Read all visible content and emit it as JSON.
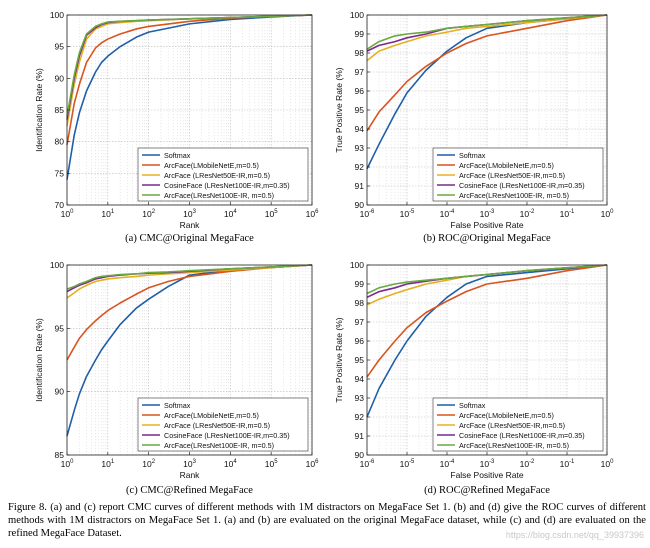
{
  "figure": {
    "caption": "Figure 8. (a) and (c) report CMC curves of different methods with 1M distractors on MegaFace Set 1. (b) and (d) give the ROC curves of different methods with 1M distractors on MegaFace Set 1. (a) and (b) are evaluated on the original MegaFace dataset, while (c) and (d) are evaluated on the refined MegaFace Dataset.",
    "watermark": "https://blog.csdn.net/qq_39937396",
    "colors": {
      "softmax": "#1f5fa8",
      "arcface_mobile": "#d9541e",
      "arcface_r50": "#e5b020",
      "cosineface": "#7a2a8e",
      "arcface_r100": "#6aa842"
    }
  },
  "chart_data": [
    {
      "type": "line",
      "caption": "(a) CMC@Original MegaFace",
      "xlabel": "Rank",
      "ylabel": "Identification Rate (%)",
      "xscale": "log",
      "xlim": [
        1,
        1000000
      ],
      "ylim": [
        70,
        100
      ],
      "xticks": [
        1,
        10,
        100,
        1000,
        10000,
        100000,
        1000000
      ],
      "xtick_labels": [
        [
          "10",
          "0"
        ],
        [
          "10",
          "1"
        ],
        [
          "10",
          "2"
        ],
        [
          "10",
          "3"
        ],
        [
          "10",
          "4"
        ],
        [
          "10",
          "5"
        ],
        [
          "10",
          "6"
        ]
      ],
      "yticks": [
        70,
        75,
        80,
        85,
        90,
        95,
        100
      ],
      "ytick_labels": [
        "70",
        "75",
        "80",
        "85",
        "90",
        "95",
        "100"
      ],
      "grid": true,
      "legend_position": "bottom-right",
      "series": [
        {
          "name": "Softmax",
          "color": "#1f5fa8",
          "x": [
            1,
            1.5,
            2,
            3,
            5,
            7,
            10,
            20,
            50,
            100,
            1000,
            10000,
            100000,
            1000000
          ],
          "y": [
            74,
            81,
            84.5,
            88,
            91,
            92.5,
            93.5,
            95,
            96.5,
            97.3,
            98.6,
            99.3,
            99.7,
            100
          ]
        },
        {
          "name": "ArcFace(LMobileNetE,m=0.5)",
          "color": "#d9541e",
          "x": [
            1,
            1.5,
            2,
            3,
            5,
            7,
            10,
            20,
            50,
            100,
            1000,
            10000,
            100000,
            1000000
          ],
          "y": [
            79.5,
            86,
            89,
            92.5,
            94.8,
            95.6,
            96.2,
            97,
            97.8,
            98.2,
            99,
            99.5,
            99.8,
            100
          ]
        },
        {
          "name": "ArcFace (LResNet50E-IR,m=0.5)",
          "color": "#e5b020",
          "x": [
            1,
            1.5,
            2,
            3,
            5,
            7,
            10,
            20,
            50,
            100,
            1000,
            10000,
            100000,
            1000000
          ],
          "y": [
            82.5,
            89,
            92.5,
            96.2,
            97.8,
            98.2,
            98.6,
            98.8,
            99,
            99.1,
            99.4,
            99.6,
            99.8,
            100
          ]
        },
        {
          "name": "CosineFace (LResNet100E-IR,m=0.35)",
          "color": "#7a2a8e",
          "x": [
            1,
            1.5,
            2,
            3,
            5,
            7,
            10,
            20,
            50,
            100,
            1000,
            10000,
            100000,
            1000000
          ],
          "y": [
            83.5,
            90,
            93.5,
            96.8,
            98,
            98.5,
            98.8,
            99,
            99.1,
            99.2,
            99.4,
            99.6,
            99.8,
            100
          ]
        },
        {
          "name": "ArcFace(LResNet100E-IR, m=0.5)",
          "color": "#6aa842",
          "x": [
            1,
            1.5,
            2,
            3,
            5,
            7,
            10,
            20,
            50,
            100,
            1000,
            10000,
            100000,
            1000000
          ],
          "y": [
            84,
            90.5,
            94,
            97,
            98.2,
            98.6,
            98.9,
            99,
            99.1,
            99.2,
            99.4,
            99.6,
            99.8,
            100
          ]
        }
      ]
    },
    {
      "type": "line",
      "caption": "(b) ROC@Original MegaFace",
      "xlabel": "False Positive Rate",
      "ylabel": "True Positive Rate (%)",
      "xscale": "log",
      "xlim": [
        1e-06,
        1
      ],
      "ylim": [
        90,
        100
      ],
      "xticks": [
        1e-06,
        1e-05,
        0.0001,
        0.001,
        0.01,
        0.1,
        1
      ],
      "xtick_labels": [
        [
          "10",
          "-6"
        ],
        [
          "10",
          "-5"
        ],
        [
          "10",
          "-4"
        ],
        [
          "10",
          "-3"
        ],
        [
          "10",
          "-2"
        ],
        [
          "10",
          "-1"
        ],
        [
          "10",
          "0"
        ]
      ],
      "yticks": [
        90,
        91,
        92,
        93,
        94,
        95,
        96,
        97,
        98,
        99,
        100
      ],
      "ytick_labels": [
        "90",
        "91",
        "92",
        "93",
        "94",
        "95",
        "96",
        "97",
        "98",
        "99",
        "100"
      ],
      "grid": true,
      "legend_position": "bottom-right",
      "series": [
        {
          "name": "Softmax",
          "color": "#1f5fa8",
          "x": [
            1e-06,
            2e-06,
            5e-06,
            1e-05,
            3e-05,
            0.0001,
            0.0003,
            0.001,
            0.01,
            0.1,
            1
          ],
          "y": [
            91.9,
            93.2,
            94.8,
            95.9,
            97.1,
            98.1,
            98.8,
            99.3,
            99.6,
            99.8,
            100
          ]
        },
        {
          "name": "ArcFace(LMobileNetE,m=0.5)",
          "color": "#d9541e",
          "x": [
            1e-06,
            2e-06,
            5e-06,
            1e-05,
            3e-05,
            0.0001,
            0.0003,
            0.001,
            0.01,
            0.1,
            1
          ],
          "y": [
            93.9,
            94.9,
            95.8,
            96.5,
            97.3,
            98,
            98.5,
            98.9,
            99.3,
            99.7,
            100
          ]
        },
        {
          "name": "ArcFace (LResNet50E-IR,m=0.5)",
          "color": "#e5b020",
          "x": [
            1e-06,
            2e-06,
            5e-06,
            1e-05,
            3e-05,
            0.0001,
            0.0003,
            0.001,
            0.01,
            0.1,
            1
          ],
          "y": [
            97.6,
            98.1,
            98.4,
            98.6,
            98.9,
            99.1,
            99.3,
            99.4,
            99.6,
            99.8,
            100
          ]
        },
        {
          "name": "CosineFace (LResNet100E-IR,m=0.35)",
          "color": "#7a2a8e",
          "x": [
            1e-06,
            2e-06,
            5e-06,
            1e-05,
            3e-05,
            0.0001,
            0.0003,
            0.001,
            0.01,
            0.1,
            1
          ],
          "y": [
            98.1,
            98.4,
            98.6,
            98.8,
            99,
            99.3,
            99.4,
            99.5,
            99.7,
            99.85,
            100
          ]
        },
        {
          "name": "ArcFace(LResNet100E-IR, m=0.5)",
          "color": "#6aa842",
          "x": [
            1e-06,
            2e-06,
            5e-06,
            1e-05,
            3e-05,
            0.0001,
            0.0003,
            0.001,
            0.01,
            0.1,
            1
          ],
          "y": [
            98.2,
            98.6,
            98.9,
            99,
            99.1,
            99.3,
            99.4,
            99.5,
            99.7,
            99.85,
            100
          ]
        }
      ]
    },
    {
      "type": "line",
      "caption": "(c) CMC@Refined MegaFace",
      "xlabel": "Rank",
      "ylabel": "Identification Rate (%)",
      "xscale": "log",
      "xlim": [
        1,
        1000000
      ],
      "ylim": [
        85,
        100
      ],
      "xticks": [
        1,
        10,
        100,
        1000,
        10000,
        100000,
        1000000
      ],
      "xtick_labels": [
        [
          "10",
          "0"
        ],
        [
          "10",
          "1"
        ],
        [
          "10",
          "2"
        ],
        [
          "10",
          "3"
        ],
        [
          "10",
          "4"
        ],
        [
          "10",
          "5"
        ],
        [
          "10",
          "6"
        ]
      ],
      "yticks": [
        85,
        90,
        95,
        100
      ],
      "ytick_labels": [
        "85",
        "90",
        "95",
        "100"
      ],
      "grid": true,
      "legend_position": "bottom-right",
      "series": [
        {
          "name": "Softmax",
          "color": "#1f5fa8",
          "x": [
            1,
            1.5,
            2,
            3,
            5,
            7,
            10,
            20,
            50,
            100,
            300,
            1000,
            10000,
            100000,
            1000000
          ],
          "y": [
            86.5,
            88.5,
            89.8,
            91.2,
            92.5,
            93.3,
            94,
            95.3,
            96.6,
            97.3,
            98.3,
            99.2,
            99.6,
            99.8,
            100
          ]
        },
        {
          "name": "ArcFace(LMobileNetE,m=0.5)",
          "color": "#d9541e",
          "x": [
            1,
            1.5,
            2,
            3,
            5,
            7,
            10,
            20,
            50,
            100,
            300,
            1000,
            10000,
            100000,
            1000000
          ],
          "y": [
            92.5,
            93.5,
            94.2,
            94.9,
            95.6,
            96,
            96.4,
            97,
            97.7,
            98.2,
            98.7,
            99.1,
            99.5,
            99.8,
            100
          ]
        },
        {
          "name": "ArcFace (LResNet50E-IR,m=0.5)",
          "color": "#e5b020",
          "x": [
            1,
            1.5,
            2,
            3,
            5,
            7,
            10,
            20,
            50,
            100,
            300,
            1000,
            10000,
            100000,
            1000000
          ],
          "y": [
            97.4,
            97.8,
            98.1,
            98.4,
            98.7,
            98.8,
            98.9,
            99,
            99.1,
            99.2,
            99.3,
            99.4,
            99.6,
            99.8,
            100
          ]
        },
        {
          "name": "CosineFace (LResNet100E-IR,m=0.35)",
          "color": "#7a2a8e",
          "x": [
            1,
            1.5,
            2,
            3,
            5,
            7,
            10,
            20,
            50,
            100,
            300,
            1000,
            10000,
            100000,
            1000000
          ],
          "y": [
            97.9,
            98.2,
            98.4,
            98.6,
            98.9,
            99,
            99.1,
            99.2,
            99.3,
            99.35,
            99.4,
            99.5,
            99.7,
            99.85,
            100
          ]
        },
        {
          "name": "ArcFace(LResNet100E-IR, m=0.5)",
          "color": "#6aa842",
          "x": [
            1,
            1.5,
            2,
            3,
            5,
            7,
            10,
            20,
            50,
            100,
            300,
            1000,
            10000,
            100000,
            1000000
          ],
          "y": [
            98.1,
            98.3,
            98.5,
            98.7,
            99,
            99.1,
            99.15,
            99.25,
            99.3,
            99.4,
            99.45,
            99.55,
            99.7,
            99.85,
            100
          ]
        }
      ]
    },
    {
      "type": "line",
      "caption": "(d) ROC@Refined MegaFace",
      "xlabel": "False Positive Rate",
      "ylabel": "True Positive Rate (%)",
      "xscale": "log",
      "xlim": [
        1e-06,
        1
      ],
      "ylim": [
        90,
        100
      ],
      "xticks": [
        1e-06,
        1e-05,
        0.0001,
        0.001,
        0.01,
        0.1,
        1
      ],
      "xtick_labels": [
        [
          "10",
          "-6"
        ],
        [
          "10",
          "-5"
        ],
        [
          "10",
          "-4"
        ],
        [
          "10",
          "-3"
        ],
        [
          "10",
          "-2"
        ],
        [
          "10",
          "-1"
        ],
        [
          "10",
          "0"
        ]
      ],
      "yticks": [
        90,
        91,
        92,
        93,
        94,
        95,
        96,
        97,
        98,
        99,
        100
      ],
      "ytick_labels": [
        "90",
        "91",
        "92",
        "93",
        "94",
        "95",
        "96",
        "97",
        "98",
        "99",
        "100"
      ],
      "grid": true,
      "legend_position": "bottom-right",
      "series": [
        {
          "name": "Softmax",
          "color": "#1f5fa8",
          "x": [
            1e-06,
            2e-06,
            5e-06,
            1e-05,
            3e-05,
            0.0001,
            0.0003,
            0.001,
            0.01,
            0.1,
            1
          ],
          "y": [
            92,
            93.5,
            95,
            96,
            97.3,
            98.3,
            99,
            99.4,
            99.6,
            99.8,
            100
          ]
        },
        {
          "name": "ArcFace(LMobileNetE,m=0.5)",
          "color": "#d9541e",
          "x": [
            1e-06,
            2e-06,
            5e-06,
            1e-05,
            3e-05,
            0.0001,
            0.0003,
            0.001,
            0.01,
            0.1,
            1
          ],
          "y": [
            94.1,
            95,
            96,
            96.7,
            97.5,
            98.1,
            98.6,
            99,
            99.3,
            99.7,
            100
          ]
        },
        {
          "name": "ArcFace (LResNet50E-IR,m=0.5)",
          "color": "#e5b020",
          "x": [
            1e-06,
            2e-06,
            5e-06,
            1e-05,
            3e-05,
            0.0001,
            0.0003,
            0.001,
            0.01,
            0.1,
            1
          ],
          "y": [
            97.9,
            98.2,
            98.5,
            98.7,
            99,
            99.2,
            99.4,
            99.5,
            99.7,
            99.85,
            100
          ]
        },
        {
          "name": "CosineFace (LResNet100E-IR,m=0.35)",
          "color": "#7a2a8e",
          "x": [
            1e-06,
            2e-06,
            5e-06,
            1e-05,
            3e-05,
            0.0001,
            0.0003,
            0.001,
            0.01,
            0.1,
            1
          ],
          "y": [
            98.3,
            98.6,
            98.8,
            99,
            99.15,
            99.3,
            99.4,
            99.5,
            99.7,
            99.85,
            100
          ]
        },
        {
          "name": "ArcFace(LResNet100E-IR, m=0.5)",
          "color": "#6aa842",
          "x": [
            1e-06,
            2e-06,
            5e-06,
            1e-05,
            3e-05,
            0.0001,
            0.0003,
            0.001,
            0.01,
            0.1,
            1
          ],
          "y": [
            98.5,
            98.8,
            99,
            99.1,
            99.2,
            99.3,
            99.4,
            99.5,
            99.7,
            99.85,
            100
          ]
        }
      ]
    }
  ]
}
